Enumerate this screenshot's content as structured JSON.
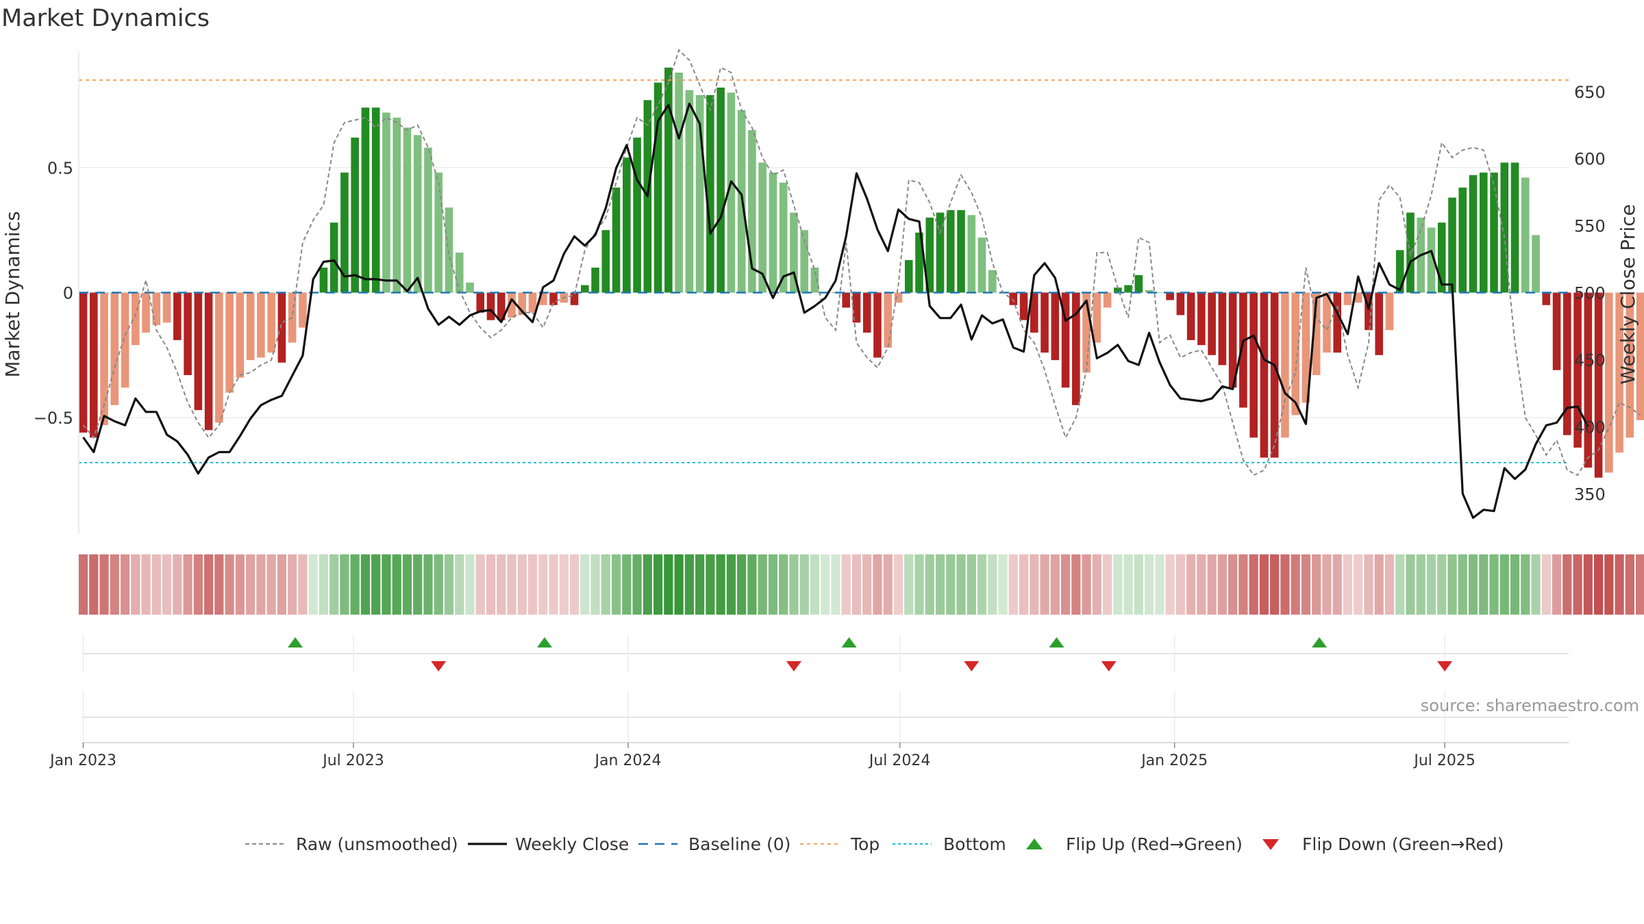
{
  "chart_data": {
    "type": "bar+line",
    "title": "Market Dynamics",
    "ylabel_left": "Market Dynamics",
    "ylabel_right": "Weekly Close Price",
    "left_ticks": [
      0.5,
      0,
      -0.5
    ],
    "left_tick_labels": [
      "0.5",
      "0",
      "−0.5"
    ],
    "right_ticks": [
      650,
      600,
      550,
      500,
      450,
      400,
      350
    ],
    "right_tick_labels": [
      "650",
      "600",
      "550",
      "500",
      "450",
      "400",
      "350"
    ],
    "xlim": [
      "2022-12-29",
      "2025-09-22"
    ],
    "ylim_left": [
      -0.965,
      0.965
    ],
    "ylim_right": [
      320,
      680
    ],
    "x_ticks": [
      "2023-01-01",
      "2023-07-01",
      "2024-01-01",
      "2024-07-01",
      "2025-01-01",
      "2025-07-01"
    ],
    "x_tick_labels": [
      "Jan 2023",
      "Jul 2023",
      "Jan 2024",
      "Jul 2024",
      "Jan 2025",
      "Jul 2025"
    ],
    "start_date": "2023-01-01",
    "top_threshold": 0.85,
    "bottom_threshold": -0.68,
    "baseline": 0,
    "dynamics": [
      -0.56,
      -0.58,
      -0.53,
      -0.45,
      -0.38,
      -0.21,
      -0.16,
      -0.13,
      -0.12,
      -0.19,
      -0.33,
      -0.47,
      -0.55,
      -0.52,
      -0.4,
      -0.34,
      -0.27,
      -0.26,
      -0.24,
      -0.28,
      -0.2,
      -0.14,
      0.0,
      0.1,
      0.28,
      0.48,
      0.62,
      0.74,
      0.74,
      0.72,
      0.7,
      0.66,
      0.63,
      0.58,
      0.48,
      0.34,
      0.16,
      0.04,
      -0.08,
      -0.11,
      -0.11,
      -0.1,
      -0.09,
      -0.08,
      -0.05,
      -0.05,
      -0.04,
      -0.05,
      0.03,
      0.1,
      0.25,
      0.42,
      0.54,
      0.62,
      0.77,
      0.84,
      0.9,
      0.88,
      0.81,
      0.79,
      0.79,
      0.82,
      0.8,
      0.73,
      0.65,
      0.52,
      0.48,
      0.44,
      0.32,
      0.25,
      0.1,
      0.0,
      0.0,
      -0.06,
      -0.12,
      -0.16,
      -0.26,
      -0.22,
      -0.04,
      0.13,
      0.24,
      0.3,
      0.32,
      0.33,
      0.33,
      0.31,
      0.22,
      0.09,
      0.0,
      -0.05,
      -0.11,
      -0.16,
      -0.24,
      -0.27,
      -0.38,
      -0.45,
      -0.32,
      -0.2,
      -0.06,
      0.02,
      0.03,
      0.07,
      0.01,
      0.0,
      -0.03,
      -0.09,
      -0.19,
      -0.21,
      -0.25,
      -0.29,
      -0.38,
      -0.46,
      -0.58,
      -0.66,
      -0.66,
      -0.58,
      -0.49,
      -0.44,
      -0.33,
      -0.24,
      -0.24,
      -0.05,
      -0.04,
      -0.15,
      -0.25,
      -0.15,
      0.17,
      0.32,
      0.3,
      0.26,
      0.28,
      0.38,
      0.42,
      0.47,
      0.48,
      0.48,
      0.52,
      0.52,
      0.46,
      0.23,
      -0.05,
      -0.31,
      -0.57,
      -0.62,
      -0.7,
      -0.74,
      -0.72,
      -0.64,
      -0.58,
      -0.51,
      -0.47,
      -0.52
    ],
    "raw": [
      -0.53,
      -0.58,
      -0.45,
      -0.3,
      -0.17,
      -0.09,
      0.05,
      -0.15,
      -0.22,
      -0.32,
      -0.44,
      -0.52,
      -0.58,
      -0.53,
      -0.4,
      -0.33,
      -0.32,
      -0.29,
      -0.27,
      -0.12,
      -0.1,
      0.2,
      0.29,
      0.35,
      0.6,
      0.68,
      0.69,
      0.7,
      0.66,
      0.7,
      0.68,
      0.65,
      0.67,
      0.58,
      0.44,
      0.15,
      0.01,
      -0.08,
      -0.14,
      -0.18,
      -0.15,
      -0.1,
      -0.08,
      -0.08,
      -0.14,
      -0.04,
      -0.02,
      -0.01,
      0.17,
      0.24,
      0.3,
      0.44,
      0.58,
      0.7,
      0.67,
      0.75,
      0.84,
      0.97,
      0.93,
      0.83,
      0.73,
      0.9,
      0.88,
      0.73,
      0.66,
      0.54,
      0.47,
      0.49,
      0.35,
      0.21,
      0.09,
      -0.1,
      -0.15,
      0.2,
      -0.2,
      -0.26,
      -0.3,
      -0.22,
      0.03,
      0.45,
      0.44,
      0.36,
      0.24,
      0.36,
      0.47,
      0.4,
      0.3,
      0.12,
      0.0,
      -0.03,
      -0.15,
      -0.2,
      -0.31,
      -0.45,
      -0.58,
      -0.5,
      -0.31,
      0.16,
      0.16,
      0.02,
      -0.1,
      0.22,
      0.2,
      -0.2,
      -0.17,
      -0.26,
      -0.24,
      -0.23,
      -0.3,
      -0.37,
      -0.52,
      -0.67,
      -0.73,
      -0.71,
      -0.61,
      -0.43,
      -0.32,
      0.1,
      -0.1,
      -0.15,
      -0.05,
      -0.25,
      -0.38,
      -0.2,
      0.37,
      0.43,
      0.38,
      0.15,
      0.25,
      0.39,
      0.6,
      0.54,
      0.57,
      0.58,
      0.57,
      0.43,
      0.22,
      -0.2,
      -0.5,
      -0.57,
      -0.65,
      -0.59,
      -0.71,
      -0.73,
      -0.66,
      -0.63,
      -0.54,
      -0.44,
      -0.46,
      -0.49
    ],
    "close": [
      392,
      381,
      408,
      404,
      401,
      421,
      411,
      411,
      394,
      389,
      379,
      365,
      377,
      381,
      381,
      393,
      406,
      416,
      420,
      423,
      438,
      453,
      510,
      523,
      524,
      512,
      513,
      510,
      510,
      509,
      509,
      501,
      511,
      488,
      476,
      482,
      476,
      483,
      486,
      487,
      478,
      495,
      486,
      478,
      504,
      509,
      529,
      542,
      535,
      543,
      563,
      593,
      610,
      584,
      572,
      628,
      640,
      615,
      641,
      626,
      544,
      556,
      583,
      573,
      518,
      514,
      496,
      512,
      515,
      485,
      490,
      496,
      509,
      542,
      589,
      570,
      547,
      531,
      562,
      555,
      553,
      490,
      481,
      481,
      491,
      465,
      483,
      477,
      480,
      459,
      456,
      513,
      522,
      511,
      479,
      484,
      494,
      451,
      455,
      461,
      449,
      446,
      470,
      448,
      431,
      421,
      420,
      419,
      421,
      430,
      428,
      464,
      468,
      450,
      446,
      425,
      418,
      402,
      496,
      499,
      485,
      469,
      512,
      488,
      522,
      506,
      502,
      523,
      528,
      531,
      506,
      506,
      350,
      332,
      338,
      337,
      369,
      361,
      368,
      387,
      401,
      403,
      414,
      415,
      400
    ],
    "series": [
      {
        "name": "Raw (unsmoothed)"
      },
      {
        "name": "Weekly Close"
      },
      {
        "name": "Baseline (0)"
      },
      {
        "name": "Top"
      },
      {
        "name": "Bottom"
      },
      {
        "name": "Flip Up (Red→Green)"
      },
      {
        "name": "Flip Down (Green→Red)"
      }
    ],
    "flips_up": [
      "2023-05-23",
      "2023-11-06",
      "2024-05-28",
      "2024-10-14",
      "2025-04-08"
    ],
    "flips_down": [
      "2023-08-27",
      "2024-04-21",
      "2024-08-18",
      "2024-11-18",
      "2025-07-01"
    ],
    "legend_position": "bottom",
    "grid": true,
    "colors": {
      "dark_green": "#228b22",
      "light_green": "#7fbf7f",
      "dark_red": "#b22222",
      "light_red": "#e9967a",
      "close": "#111111",
      "raw": "#888888",
      "baseline": "#1f77b4",
      "top": "#f4a460",
      "bottom": "#17becf",
      "flip_up": "#2ca02c",
      "flip_down": "#d62728"
    }
  },
  "source": "source: sharemaestro.com"
}
